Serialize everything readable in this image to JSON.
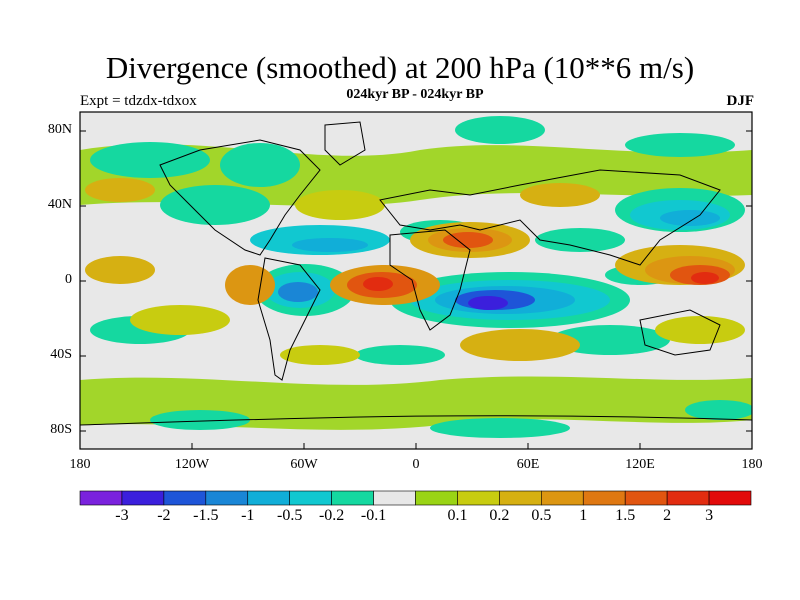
{
  "title": "Divergence (smoothed) at 200 hPa (10**6 m/s)",
  "subtitle": "024kyr BP - 024kyr BP",
  "left_label": "Expt = tdzdx-tdxox",
  "right_label": "DJF",
  "map": {
    "lat_ticks": [
      "80N",
      "40N",
      "0",
      "40S",
      "80S"
    ],
    "lon_ticks": [
      "180",
      "120W",
      "60W",
      "0",
      "60E",
      "120E",
      "180"
    ]
  },
  "colorbar": {
    "colors": [
      "#7a22dd",
      "#3b1fdc",
      "#1e55d8",
      "#1a86d6",
      "#11aed8",
      "#11c8d0",
      "#15d8a0",
      "#e8e8e8",
      "#9ad415",
      "#c8cc10",
      "#d6b012",
      "#dc9612",
      "#df7812",
      "#e15510",
      "#e22c10",
      "#e20a0a"
    ],
    "labels": [
      "-3",
      "-2",
      "-1.5",
      "-1",
      "-0.5",
      "-0.2",
      "-0.1",
      "0.1",
      "0.2",
      "0.5",
      "1",
      "1.5",
      "2",
      "3"
    ]
  }
}
